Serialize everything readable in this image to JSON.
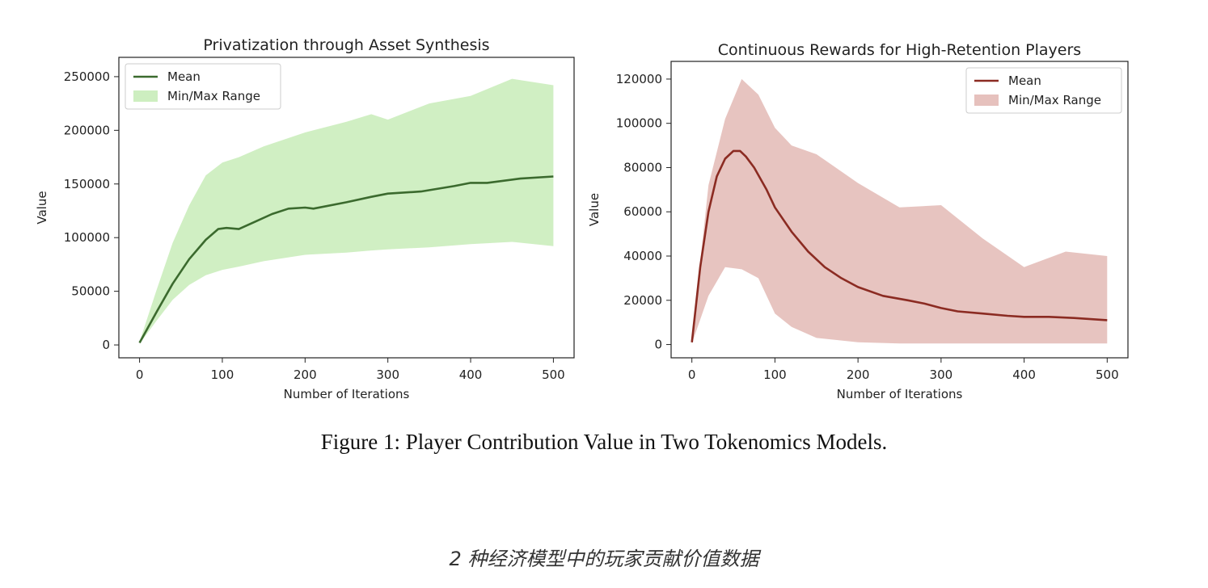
{
  "figure_caption": "Figure 1: Player Contribution Value in Two Tokenomics Models.",
  "image_caption": "2 种经济模型中的玩家贡献价值数据",
  "chart_data": [
    {
      "type": "area",
      "title": "Privatization through Asset Synthesis",
      "xlabel": "Number of Iterations",
      "ylabel": "Value",
      "xlim": [
        -25,
        525
      ],
      "ylim": [
        -12000,
        268000
      ],
      "xticks": [
        0,
        100,
        200,
        300,
        400,
        500
      ],
      "yticks": [
        0,
        50000,
        100000,
        150000,
        200000,
        250000
      ],
      "x_tick_labels": [
        "0",
        "100",
        "200",
        "300",
        "400",
        "500"
      ],
      "y_tick_labels": [
        "0",
        "50000",
        "100000",
        "150000",
        "200000",
        "250000"
      ],
      "grid": false,
      "legend_position": "top-left",
      "colors": {
        "line": "#3b6a2e",
        "band": "#cdeec0"
      },
      "series": [
        {
          "name": "Mean",
          "kind": "line",
          "x": [
            0,
            20,
            40,
            60,
            80,
            95,
            105,
            120,
            140,
            160,
            180,
            200,
            210,
            250,
            280,
            300,
            340,
            380,
            400,
            420,
            460,
            500
          ],
          "y": [
            2000,
            30000,
            57000,
            80000,
            98000,
            108000,
            109000,
            108000,
            115000,
            122000,
            127000,
            128000,
            127000,
            133000,
            138000,
            141000,
            143000,
            148000,
            151000,
            151000,
            155000,
            157000
          ]
        },
        {
          "name": "Min/Max Range",
          "kind": "band",
          "x": [
            0,
            20,
            40,
            60,
            80,
            100,
            120,
            150,
            200,
            250,
            280,
            300,
            350,
            400,
            450,
            500
          ],
          "lower": [
            1000,
            22000,
            42000,
            56000,
            65000,
            70000,
            73000,
            78000,
            84000,
            86000,
            88000,
            89000,
            91000,
            94000,
            96000,
            92000
          ],
          "upper": [
            3000,
            50000,
            95000,
            130000,
            158000,
            170000,
            175000,
            185000,
            198000,
            208000,
            215000,
            210000,
            225000,
            232000,
            248000,
            242000
          ]
        }
      ]
    },
    {
      "type": "area",
      "title": "Continuous Rewards for High-Retention Players",
      "xlabel": "Number of Iterations",
      "ylabel": "Value",
      "xlim": [
        -25,
        525
      ],
      "ylim": [
        -6000,
        128000
      ],
      "xticks": [
        0,
        100,
        200,
        300,
        400,
        500
      ],
      "yticks": [
        0,
        20000,
        40000,
        60000,
        80000,
        100000,
        120000
      ],
      "x_tick_labels": [
        "0",
        "100",
        "200",
        "300",
        "400",
        "500"
      ],
      "y_tick_labels": [
        "0",
        "20000",
        "40000",
        "60000",
        "80000",
        "100000",
        "120000"
      ],
      "grid": false,
      "legend_position": "top-right",
      "colors": {
        "line": "#8b2b22",
        "band": "#e6c1bd"
      },
      "series": [
        {
          "name": "Mean",
          "kind": "line",
          "x": [
            0,
            10,
            20,
            30,
            40,
            50,
            58,
            65,
            75,
            90,
            100,
            120,
            140,
            160,
            180,
            200,
            230,
            260,
            280,
            300,
            320,
            350,
            380,
            400,
            430,
            460,
            500
          ],
          "y": [
            1000,
            35000,
            60000,
            76000,
            84000,
            87500,
            87500,
            85000,
            80000,
            70000,
            62000,
            51000,
            42000,
            35000,
            30000,
            26000,
            22000,
            20000,
            18500,
            16500,
            15000,
            14000,
            13000,
            12500,
            12500,
            12000,
            11000
          ]
        },
        {
          "name": "Min/Max Range",
          "kind": "band",
          "x": [
            0,
            20,
            40,
            60,
            80,
            100,
            120,
            150,
            200,
            250,
            300,
            350,
            400,
            450,
            500
          ],
          "lower": [
            500,
            22000,
            35000,
            34000,
            30000,
            14000,
            8000,
            3000,
            1000,
            500,
            500,
            500,
            500,
            500,
            500
          ],
          "upper": [
            2000,
            72000,
            102000,
            120000,
            113000,
            98000,
            90000,
            86000,
            73000,
            62000,
            63000,
            48000,
            35000,
            42000,
            40000
          ]
        }
      ]
    }
  ]
}
